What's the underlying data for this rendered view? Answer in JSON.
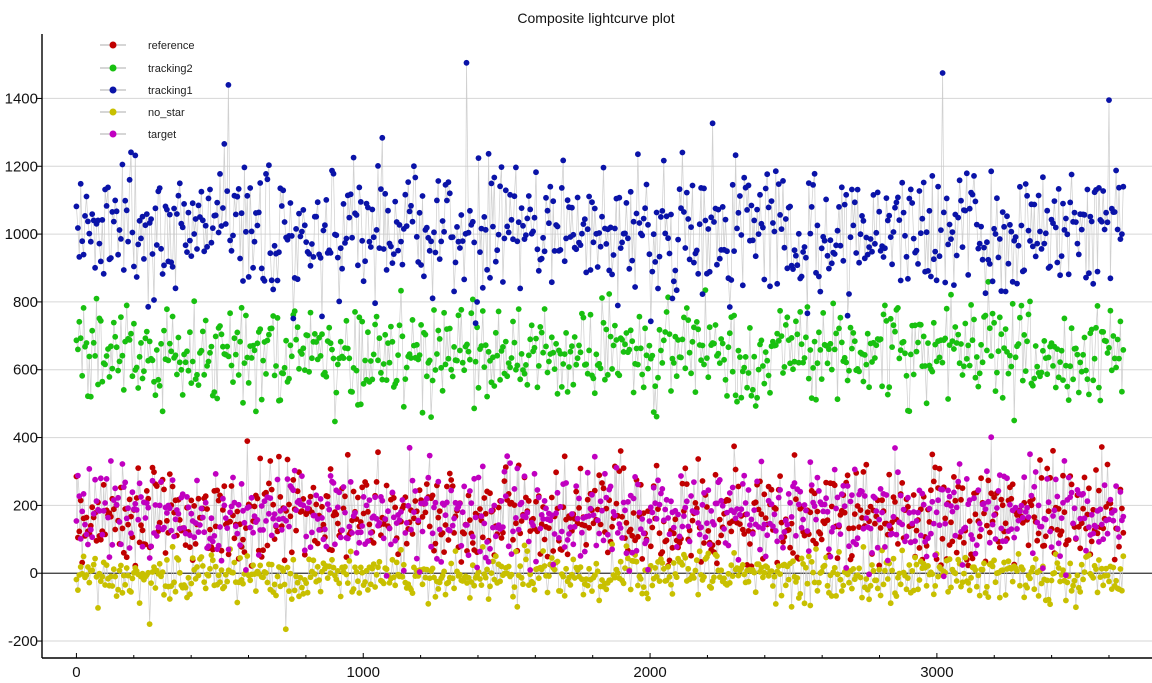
{
  "page": {
    "title": "Composite lightcurve plot"
  },
  "chart_data": {
    "type": "scatter",
    "title": "Composite lightcurve plot",
    "xlabel": "",
    "ylabel": "",
    "xlim": [
      -120,
      3750
    ],
    "ylim": [
      -250,
      1590
    ],
    "x_ticks": [
      0,
      1000,
      2000,
      3000
    ],
    "y_ticks": [
      -200,
      0,
      200,
      400,
      600,
      800,
      1000,
      1200,
      1400
    ],
    "grid": true,
    "legend_position": "top-left",
    "connect_points": true,
    "connector_color": "#c8c8c8",
    "series": [
      {
        "name": "reference",
        "color": "#c00000",
        "x_start": 0,
        "x_end": 3650,
        "point_count": 730,
        "center": 165,
        "spread": 90,
        "min": 20,
        "max": 410
      },
      {
        "name": "tracking2",
        "color": "#18c010",
        "x_start": 0,
        "x_end": 3650,
        "point_count": 730,
        "center": 650,
        "spread": 92,
        "min": 410,
        "max": 900
      },
      {
        "name": "tracking1",
        "color": "#0a13a8",
        "x_start": 0,
        "x_end": 3650,
        "point_count": 730,
        "center": 1010,
        "spread": 115,
        "min": 730,
        "max": 1505
      },
      {
        "name": "no_star",
        "color": "#c8c000",
        "x_start": 0,
        "x_end": 3650,
        "point_count": 730,
        "center": -5,
        "spread": 42,
        "min": -165,
        "max": 90
      },
      {
        "name": "target",
        "color": "#c000c0",
        "x_start": 0,
        "x_end": 3650,
        "point_count": 730,
        "center": 175,
        "spread": 88,
        "min": -10,
        "max": 410
      }
    ],
    "notable_peaks": [
      {
        "series": "tracking1",
        "x": 530,
        "y": 1440
      },
      {
        "series": "tracking1",
        "x": 1360,
        "y": 1505
      },
      {
        "series": "tracking1",
        "x": 3020,
        "y": 1475
      },
      {
        "series": "tracking1",
        "x": 3600,
        "y": 1395
      },
      {
        "series": "no_star",
        "x": 730,
        "y": -165
      },
      {
        "series": "no_star",
        "x": 255,
        "y": -150
      }
    ]
  }
}
